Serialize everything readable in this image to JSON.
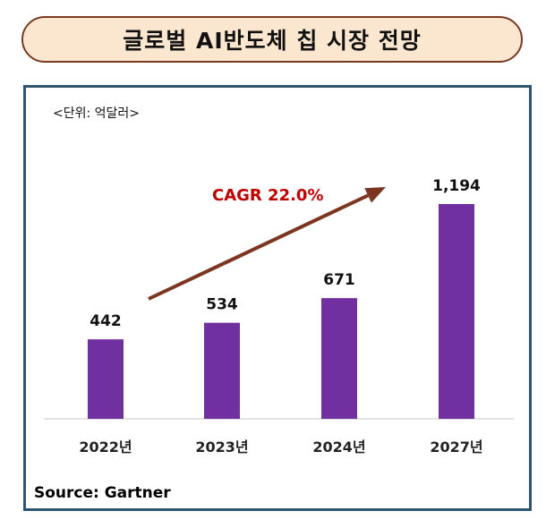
{
  "header": {
    "title": "글로벌 AI반도체 칩 시장 전망"
  },
  "chart_data": {
    "type": "bar",
    "unit_note": "<단위: 억달러>",
    "categories": [
      "2022년",
      "2023년",
      "2024년",
      "2027년"
    ],
    "values": [
      442,
      534,
      671,
      1194
    ],
    "value_labels": [
      "442",
      "534",
      "671",
      "1,194"
    ],
    "ylim": [
      0,
      1300
    ],
    "annotation": "CAGR 22.0%",
    "grid": false,
    "legend": "none"
  },
  "source": "Source: Gartner",
  "colors": {
    "bar": "#7030a0",
    "arrow": "#7b3520",
    "cagr": "#c00000",
    "frame": "#2e5470",
    "title_bg": "#fbe6cf"
  }
}
